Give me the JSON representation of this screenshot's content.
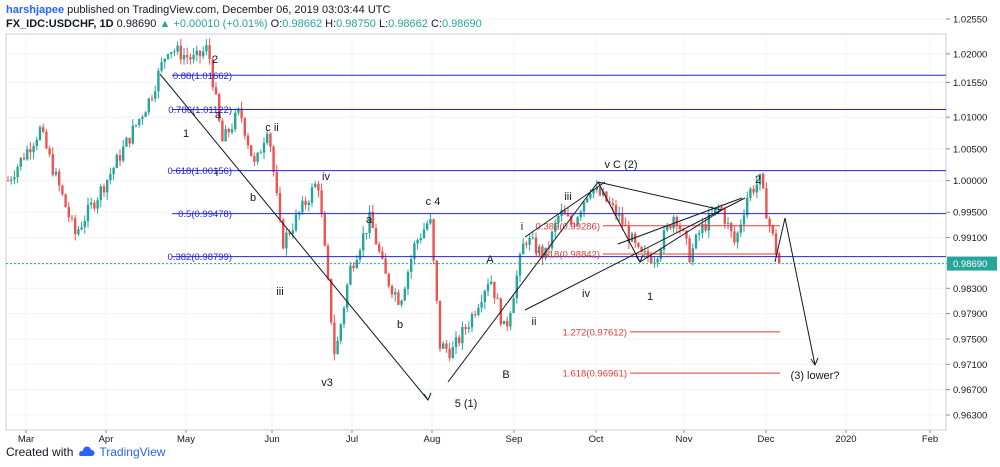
{
  "header": {
    "user": "harshjapee",
    "published": "published on TradingView.com, December 06, 2019 03:03:44 UTC",
    "symbol": "FX_IDC:USDCHF, 1D",
    "last": "0.98690",
    "change": "▲ +0.00010 (+0.01%)",
    "o_label": "O:",
    "o_val": "0.98662",
    "h_label": "H:",
    "h_val": "0.98750",
    "l_label": "L:",
    "l_val": "0.98662",
    "c_label": "C:",
    "c_val": "0.98690"
  },
  "footer": {
    "created": "Created with",
    "brand": "TradingView"
  },
  "chart_data": {
    "type": "candlestick",
    "instrument": "FX_IDC:USDCHF",
    "timeframe": "1D",
    "y_axis_ticks": [
      "1.02550",
      "1.02000",
      "1.01550",
      "1.01000",
      "1.00500",
      "1.00000",
      "0.99500",
      "0.99100",
      "0.98690",
      "0.98300",
      "0.97900",
      "0.97500",
      "0.97100",
      "0.96700",
      "0.96300"
    ],
    "y_axis_positions": [
      1.0255,
      1.02,
      1.0155,
      1.01,
      1.005,
      1.0,
      0.995,
      0.991,
      0.9869,
      0.983,
      0.979,
      0.975,
      0.971,
      0.967,
      0.963
    ],
    "x_axis_labels": [
      "Mar",
      "Apr",
      "May",
      "Jun",
      "Jul",
      "Aug",
      "Sep",
      "Oct",
      "Nov",
      "Dec",
      "2020",
      "Feb"
    ],
    "ylim": [
      0.963,
      1.0255
    ],
    "last_price": 0.9869,
    "fib_levels_blue": [
      {
        "label": "0.88(1.01662)",
        "price": 1.01662
      },
      {
        "label": "0.786(1.01122)",
        "price": 1.01122
      },
      {
        "label": "0.618(1.00156)",
        "price": 1.00156
      },
      {
        "label": "0.5(0.99478)",
        "price": 0.99478
      },
      {
        "label": "0.382(0.98799)",
        "price": 0.98799
      }
    ],
    "fib_levels_red": [
      {
        "label": "0.382(0.99286)",
        "price": 0.99286
      },
      {
        "label": "0.618(0.98842)",
        "price": 0.98842
      },
      {
        "label": "1.272(0.97612)",
        "price": 0.97612
      },
      {
        "label": "1.618(0.96961)",
        "price": 0.96961
      }
    ],
    "wave_labels": [
      {
        "text": "2",
        "time": "May 2019"
      },
      {
        "text": "1",
        "time": "Apr 2019"
      },
      {
        "text": "a",
        "time": "May 2019"
      },
      {
        "text": "c ii",
        "time": "May 2019"
      },
      {
        "text": "i",
        "time": "May 2019"
      },
      {
        "text": "b",
        "time": "May 2019"
      },
      {
        "text": "iv",
        "time": "Jun 2019"
      },
      {
        "text": "iii",
        "time": "Jun 2019"
      },
      {
        "text": "v3",
        "time": "Jun 2019"
      },
      {
        "text": "a",
        "time": "Jul 2019"
      },
      {
        "text": "b",
        "time": "Jul 2019"
      },
      {
        "text": "c 4",
        "time": "Jul 2019"
      },
      {
        "text": "5 (1)",
        "time": "Aug 2019"
      },
      {
        "text": "A",
        "time": "Aug 2019"
      },
      {
        "text": "B",
        "time": "Aug 2019"
      },
      {
        "text": "i",
        "time": "Sep 2019"
      },
      {
        "text": "ii",
        "time": "Sep 2019"
      },
      {
        "text": "iii",
        "time": "Sep 2019"
      },
      {
        "text": "iv",
        "time": "Sep 2019"
      },
      {
        "text": "v C (2)",
        "time": "Oct 2019"
      },
      {
        "text": "1",
        "time": "Oct 2019"
      },
      {
        "text": "2",
        "time": "Nov 2019"
      },
      {
        "text": "(3) lower?",
        "time": "Dec 2019"
      }
    ]
  }
}
